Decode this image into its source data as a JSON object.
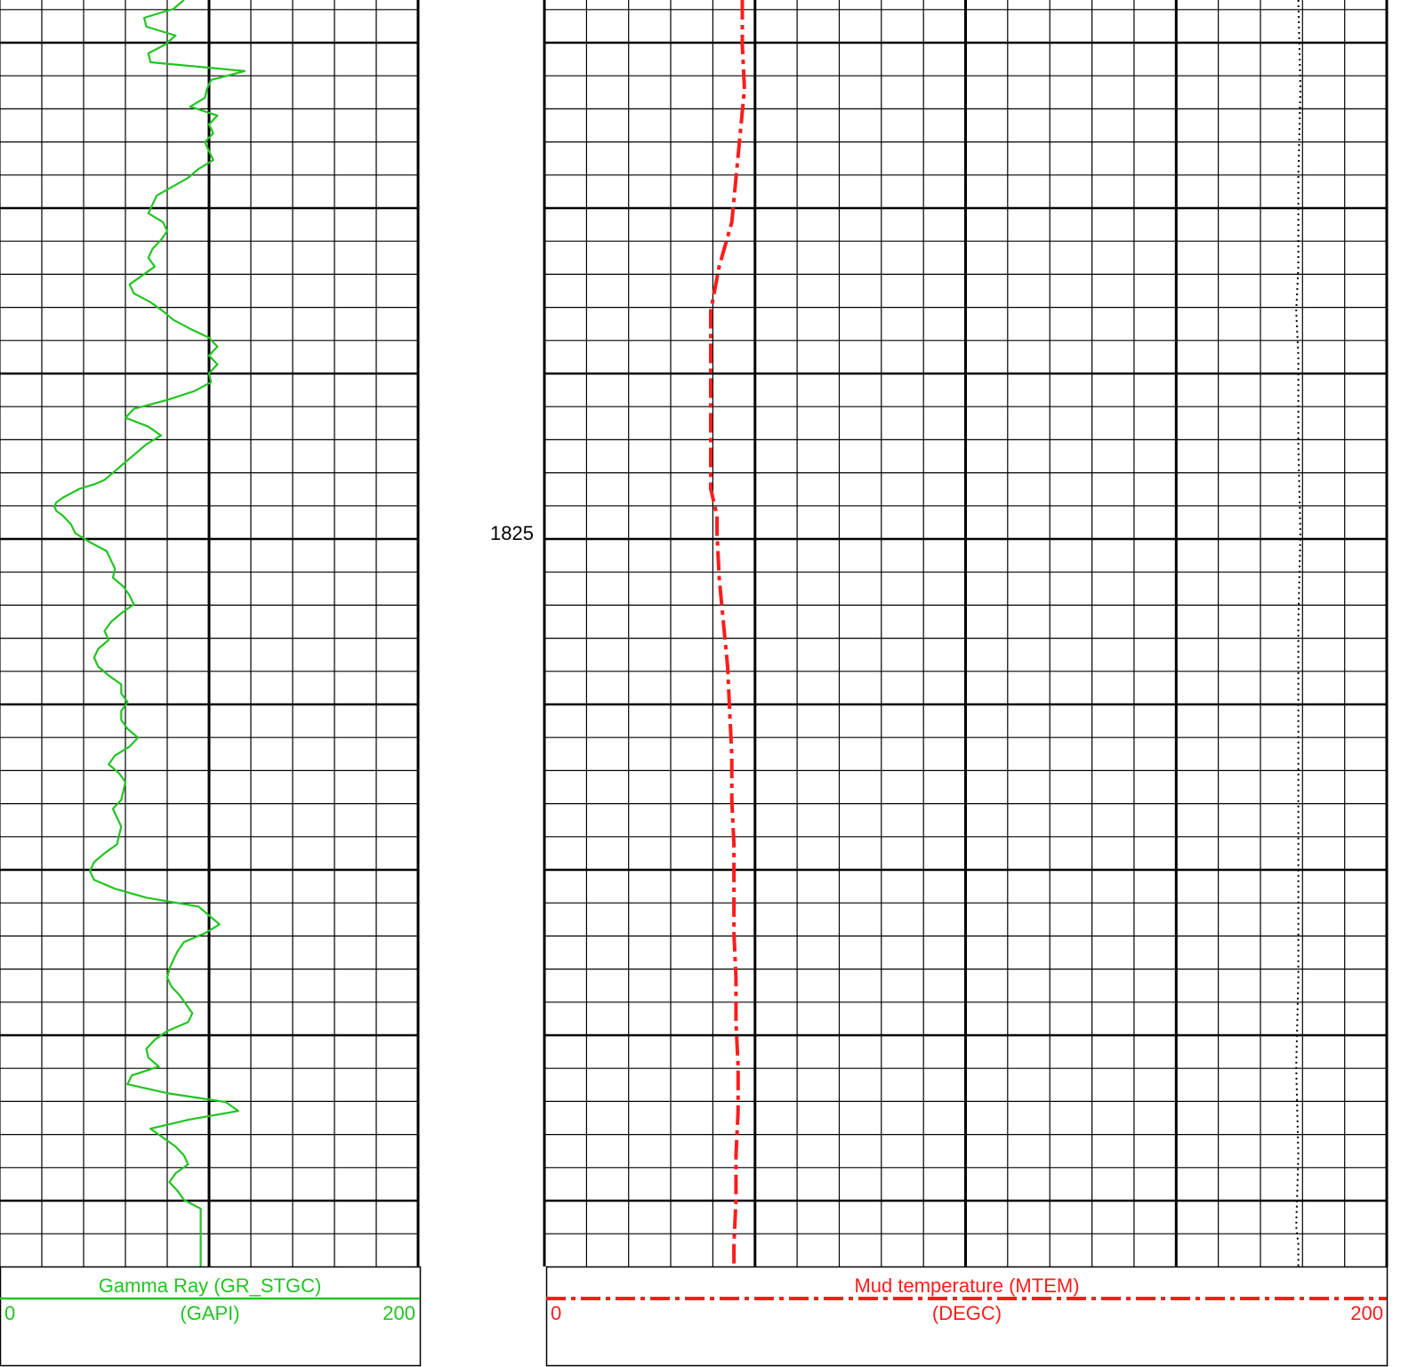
{
  "depth_track": {
    "label": "1825"
  },
  "chart_data": {
    "type": "line",
    "depth_axis": {
      "reference_depth": "1825"
    },
    "tracks": [
      {
        "name": "gamma-ray-track",
        "curve": {
          "mnemonic": "GR_STGC",
          "title": "Gamma Ray (GR_STGC)",
          "unit": "(GAPI)",
          "min_label": "0",
          "max_label": "200",
          "range": [
            0,
            200
          ],
          "color": "#22c422",
          "style": "solid",
          "points": [
            [
              0,
              88
            ],
            [
              10,
              83
            ],
            [
              20,
              69
            ],
            [
              30,
              70
            ],
            [
              40,
              84
            ],
            [
              50,
              79
            ],
            [
              60,
              71
            ],
            [
              70,
              72
            ],
            [
              80,
              117
            ],
            [
              90,
              101
            ],
            [
              100,
              99
            ],
            [
              110,
              98
            ],
            [
              120,
              91
            ],
            [
              130,
              104
            ],
            [
              140,
              100
            ],
            [
              150,
              102
            ],
            [
              160,
              98
            ],
            [
              170,
              100
            ],
            [
              180,
              102
            ],
            [
              190,
              95
            ],
            [
              200,
              90
            ],
            [
              220,
              75
            ],
            [
              230,
              73
            ],
            [
              240,
              71
            ],
            [
              250,
              78
            ],
            [
              260,
              80
            ],
            [
              270,
              77
            ],
            [
              280,
              73
            ],
            [
              290,
              71
            ],
            [
              300,
              74
            ],
            [
              310,
              68
            ],
            [
              320,
              62
            ],
            [
              330,
              64
            ],
            [
              340,
              72
            ],
            [
              350,
              78
            ],
            [
              360,
              83
            ],
            [
              370,
              91
            ],
            [
              380,
              100
            ],
            [
              390,
              104
            ],
            [
              400,
              100
            ],
            [
              410,
              104
            ],
            [
              420,
              100
            ],
            [
              430,
              101
            ],
            [
              440,
              93
            ],
            [
              450,
              80
            ],
            [
              460,
              64
            ],
            [
              470,
              60
            ],
            [
              480,
              71
            ],
            [
              490,
              77
            ],
            [
              500,
              70
            ],
            [
              510,
              65
            ],
            [
              520,
              60
            ],
            [
              530,
              55
            ],
            [
              540,
              50
            ],
            [
              545,
              45
            ],
            [
              550,
              38
            ],
            [
              560,
              30
            ],
            [
              565,
              27
            ],
            [
              570,
              26
            ],
            [
              575,
              27
            ],
            [
              580,
              30
            ],
            [
              590,
              34
            ],
            [
              600,
              36
            ],
            [
              610,
              43
            ],
            [
              620,
              51
            ],
            [
              630,
              53
            ],
            [
              640,
              55
            ],
            [
              650,
              54
            ],
            [
              660,
              59
            ],
            [
              670,
              62
            ],
            [
              680,
              64
            ],
            [
              690,
              58
            ],
            [
              700,
              53
            ],
            [
              710,
              50
            ],
            [
              720,
              52
            ],
            [
              730,
              47
            ],
            [
              740,
              45
            ],
            [
              750,
              47
            ],
            [
              760,
              52
            ],
            [
              770,
              58
            ],
            [
              780,
              58
            ],
            [
              790,
              61
            ],
            [
              800,
              58
            ],
            [
              810,
              58
            ],
            [
              820,
              61
            ],
            [
              830,
              66
            ],
            [
              840,
              62
            ],
            [
              850,
              55
            ],
            [
              860,
              52
            ],
            [
              870,
              57
            ],
            [
              880,
              60
            ],
            [
              890,
              59
            ],
            [
              900,
              58
            ],
            [
              910,
              54
            ],
            [
              920,
              56
            ],
            [
              930,
              58
            ],
            [
              940,
              57
            ],
            [
              950,
              56
            ],
            [
              960,
              50
            ],
            [
              970,
              45
            ],
            [
              980,
              43
            ],
            [
              990,
              45
            ],
            [
              1000,
              55
            ],
            [
              1010,
              70
            ],
            [
              1020,
              95
            ],
            [
              1030,
              100
            ],
            [
              1040,
              105
            ],
            [
              1050,
              98
            ],
            [
              1060,
              88
            ],
            [
              1070,
              85
            ],
            [
              1080,
              83
            ],
            [
              1090,
              81
            ],
            [
              1100,
              80
            ],
            [
              1110,
              82
            ],
            [
              1120,
              86
            ],
            [
              1130,
              89
            ],
            [
              1140,
              92
            ],
            [
              1150,
              90
            ],
            [
              1160,
              80
            ],
            [
              1170,
              74
            ],
            [
              1180,
              70
            ],
            [
              1190,
              71
            ],
            [
              1200,
              76
            ],
            [
              1210,
              63
            ],
            [
              1220,
              61
            ],
            [
              1230,
              80
            ],
            [
              1240,
              108
            ],
            [
              1250,
              114
            ],
            [
              1260,
              90
            ],
            [
              1270,
              72
            ],
            [
              1280,
              78
            ],
            [
              1290,
              84
            ],
            [
              1300,
              88
            ],
            [
              1310,
              90
            ],
            [
              1320,
              84
            ],
            [
              1330,
              81
            ],
            [
              1340,
              85
            ],
            [
              1350,
              88
            ],
            [
              1360,
              96
            ],
            [
              1400,
              96
            ],
            [
              1425,
              96
            ]
          ]
        }
      },
      {
        "name": "mud-temperature-track",
        "curve": {
          "mnemonic": "MTEM",
          "title": "Mud temperature (MTEM)",
          "unit": "(DEGC)",
          "min_label": "0",
          "max_label": "200",
          "range": [
            0,
            200
          ],
          "color": "#ff1c1c",
          "style": "dash-dot",
          "points": [
            [
              0,
              47
            ],
            [
              50,
              47
            ],
            [
              100,
              47.5
            ],
            [
              150,
              46.5
            ],
            [
              200,
              45.5
            ],
            [
              250,
              44.5
            ],
            [
              300,
              41.5
            ],
            [
              350,
              39.5
            ],
            [
              400,
              39.5
            ],
            [
              450,
              39.5
            ],
            [
              500,
              39.5
            ],
            [
              550,
              39.5
            ],
            [
              580,
              41
            ],
            [
              600,
              41
            ],
            [
              650,
              41.5
            ],
            [
              700,
              42.5
            ],
            [
              750,
              43.5
            ],
            [
              800,
              44
            ],
            [
              850,
              44.5
            ],
            [
              900,
              44.5
            ],
            [
              950,
              45
            ],
            [
              1000,
              45
            ],
            [
              1050,
              45
            ],
            [
              1100,
              45.5
            ],
            [
              1150,
              45.5
            ],
            [
              1200,
              46
            ],
            [
              1250,
              46
            ],
            [
              1300,
              45.5
            ],
            [
              1350,
              45.5
            ],
            [
              1400,
              45
            ],
            [
              1425,
              45
            ]
          ]
        },
        "secondary_curve": {
          "color": "#000000",
          "style": "dotted",
          "points": [
            [
              0,
              179
            ],
            [
              100,
              179.5
            ],
            [
              200,
              179
            ],
            [
              300,
              179
            ],
            [
              350,
              178.5
            ],
            [
              400,
              179
            ],
            [
              500,
              179
            ],
            [
              600,
              179.5
            ],
            [
              700,
              179
            ],
            [
              800,
              179
            ],
            [
              900,
              179
            ],
            [
              1000,
              179
            ],
            [
              1100,
              179
            ],
            [
              1200,
              178.5
            ],
            [
              1300,
              179
            ],
            [
              1380,
              178.5
            ],
            [
              1400,
              179
            ],
            [
              1425,
              179
            ]
          ]
        }
      }
    ]
  }
}
